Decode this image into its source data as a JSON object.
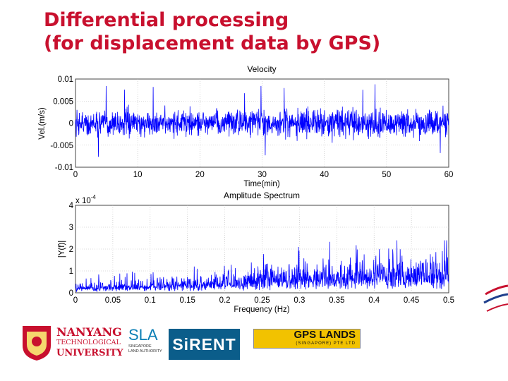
{
  "slide": {
    "title_line1": "Differential processing",
    "title_line2": "(for displacement data by GPS)"
  },
  "chart_data": [
    {
      "type": "line",
      "title": "Velocity",
      "xlabel": "Time(min)",
      "ylabel": "Vel.(m/s)",
      "xlim": [
        0,
        60
      ],
      "ylim": [
        -0.01,
        0.01
      ],
      "x_ticks": [
        "0",
        "10",
        "20",
        "30",
        "40",
        "50",
        "60"
      ],
      "y_ticks": [
        "0.01",
        "0.005",
        "0",
        "-0.005",
        "-0.01"
      ],
      "grid": true,
      "series": [
        {
          "color": "#0000ff",
          "signal": "noise",
          "mean": 0,
          "typical_amplitude": 0.0025,
          "peak_amplitude": 0.009
        }
      ]
    },
    {
      "type": "line",
      "title": "Amplitude Spectrum",
      "xlabel": "Frequency (Hz)",
      "ylabel": "|Y(f)|",
      "y_scale_label": "x 10",
      "y_scale_exponent": "-4",
      "xlim": [
        0,
        0.5
      ],
      "ylim": [
        0,
        4
      ],
      "x_ticks": [
        "0",
        "0.05",
        "0.1",
        "0.15",
        "0.2",
        "0.25",
        "0.3",
        "0.35",
        "0.4",
        "0.45",
        "0.5"
      ],
      "y_ticks": [
        "4",
        "3",
        "2",
        "1",
        "0"
      ],
      "grid": true,
      "series": [
        {
          "color": "#0000ff",
          "signal": "spectrum",
          "trend_x": [
            0,
            0.1,
            0.2,
            0.3,
            0.4,
            0.5
          ],
          "trend_y": [
            0.3,
            0.4,
            0.6,
            0.85,
            1.0,
            1.1
          ],
          "peak_value": 2.4
        }
      ]
    }
  ],
  "logos": {
    "ntu_line1": "NANYANG",
    "ntu_line2": "TECHNOLOGICAL",
    "ntu_line3": "UNIVERSITY",
    "sla": "SLA",
    "sla_sub": "SINGAPORE LAND AUTHORITY",
    "sirent": "SiRENT",
    "gps_lands": "GPS LANDS",
    "gps_lands_sub": "(SINGAPORE) PTE LTD"
  },
  "colors": {
    "title": "#c8102e",
    "series": "#0000ff",
    "grid": "#bbbbbb",
    "ntu_red": "#c8102e",
    "sirent_bg": "#0b5d8a",
    "gps_yellow": "#f2c200"
  }
}
